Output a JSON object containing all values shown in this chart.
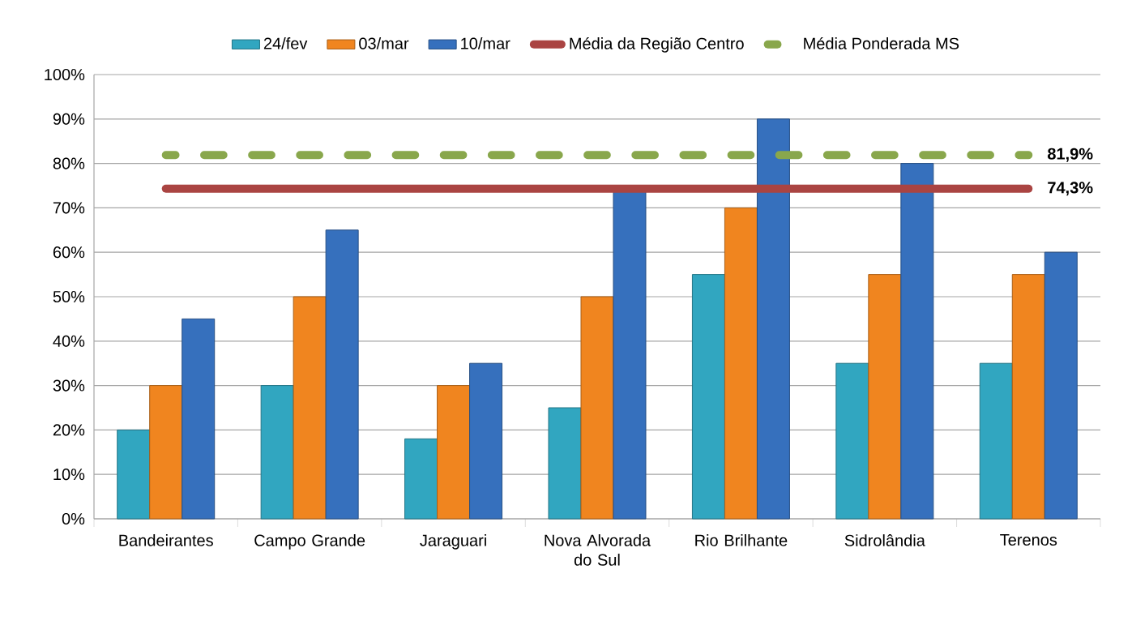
{
  "chart_data": {
    "type": "bar",
    "categories": [
      "Bandeirantes",
      "Campo Grande",
      "Jaraguari",
      "Nova Alvorada do Sul",
      "Rio Brilhante",
      "Sidrolândia",
      "Terenos"
    ],
    "series": [
      {
        "name": "24/fev",
        "color": "#31a6c0",
        "values": [
          20,
          30,
          18,
          25,
          55,
          35,
          35
        ]
      },
      {
        "name": "03/mar",
        "color": "#f0851f",
        "values": [
          30,
          50,
          30,
          50,
          70,
          55,
          55
        ]
      },
      {
        "name": "10/mar",
        "color": "#3670bd",
        "values": [
          45,
          65,
          35,
          74,
          90,
          80,
          60
        ]
      },
      {
        "name": "Média da Região Centro",
        "type": "line",
        "color": "#aa4442",
        "line_style": "solid",
        "values": [
          74.3,
          74.3,
          74.3,
          74.3,
          74.3,
          74.3,
          74.3
        ],
        "value_labels": [
          null,
          null,
          null,
          null,
          null,
          null,
          "74,3%"
        ]
      },
      {
        "name": "Média Ponderada MS",
        "type": "line",
        "color": "#89a74c",
        "line_style": "dashed",
        "values": [
          81.9,
          81.9,
          81.9,
          81.9,
          81.9,
          81.9,
          81.9
        ],
        "value_labels": [
          null,
          null,
          null,
          null,
          null,
          null,
          "81,9%"
        ]
      }
    ],
    "ylim": [
      0,
      100
    ],
    "yticks": [
      {
        "value": 0,
        "label": "0%"
      },
      {
        "value": 10,
        "label": "10%"
      },
      {
        "value": 20,
        "label": "20%"
      },
      {
        "value": 30,
        "label": "30%"
      },
      {
        "value": 40,
        "label": "40%"
      },
      {
        "value": 50,
        "label": "50%"
      },
      {
        "value": 60,
        "label": "60%"
      },
      {
        "value": 70,
        "label": "70%"
      },
      {
        "value": 80,
        "label": "80%"
      },
      {
        "value": 90,
        "label": "90%"
      },
      {
        "value": 100,
        "label": "100%"
      }
    ],
    "grid": "y",
    "legend": "top",
    "marker": "none"
  }
}
